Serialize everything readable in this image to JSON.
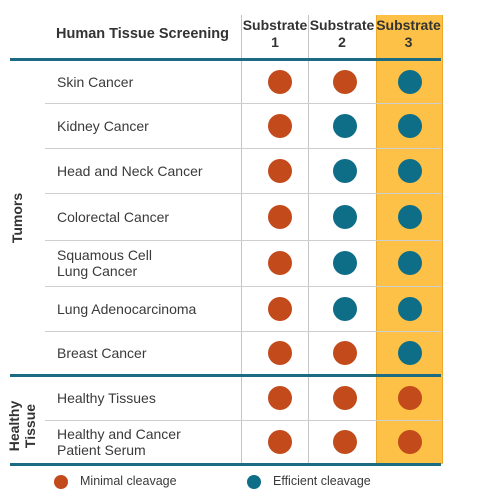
{
  "title": "Human Tissue Screening",
  "columns": [
    {
      "line1": "Substrate",
      "line2": "1"
    },
    {
      "line1": "Substrate",
      "line2": "2"
    },
    {
      "line1": "Substrate",
      "line2": "3"
    }
  ],
  "groups": [
    {
      "label": "Tumors",
      "lines": [
        "Tumors"
      ]
    },
    {
      "label": "Healthy Tissue",
      "lines": [
        "Healthy",
        "Tissue"
      ]
    }
  ],
  "rows": [
    {
      "label": [
        "Skin Cancer"
      ],
      "values": [
        "minimal",
        "minimal",
        "efficient"
      ]
    },
    {
      "label": [
        "Kidney Cancer"
      ],
      "values": [
        "minimal",
        "efficient",
        "efficient"
      ]
    },
    {
      "label": [
        "Head and Neck Cancer"
      ],
      "values": [
        "minimal",
        "efficient",
        "efficient"
      ]
    },
    {
      "label": [
        "Colorectal Cancer"
      ],
      "values": [
        "minimal",
        "efficient",
        "efficient"
      ]
    },
    {
      "label": [
        "Squamous Cell",
        "Lung Cancer"
      ],
      "values": [
        "minimal",
        "efficient",
        "efficient"
      ]
    },
    {
      "label": [
        "Lung Adenocarcinoma"
      ],
      "values": [
        "minimal",
        "efficient",
        "efficient"
      ]
    },
    {
      "label": [
        "Breast Cancer"
      ],
      "values": [
        "minimal",
        "minimal",
        "efficient"
      ]
    },
    {
      "label": [
        "Healthy Tissues"
      ],
      "values": [
        "minimal",
        "minimal",
        "minimal"
      ]
    },
    {
      "label": [
        "Healthy and Cancer",
        "Patient Serum"
      ],
      "values": [
        "minimal",
        "minimal",
        "minimal"
      ]
    }
  ],
  "legend": {
    "minimal": {
      "label": "Minimal cleavage",
      "color": "#c24a1b"
    },
    "efficient": {
      "label": "Efficient cleavage",
      "color": "#0e6d87"
    }
  },
  "colors": {
    "highlight": "#fcc146",
    "divider": "#1c6b83"
  }
}
